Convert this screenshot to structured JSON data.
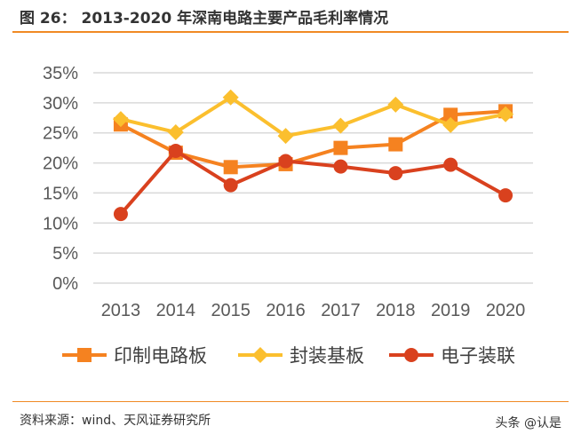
{
  "title": "图 26：  2013-2020 年深南电路主要产品毛利率情况",
  "source": "资料来源：wind、天风证券研究所",
  "credit": "头条 @认是",
  "chart_data": {
    "type": "line",
    "categories": [
      "2013",
      "2014",
      "2015",
      "2016",
      "2017",
      "2018",
      "2019",
      "2020"
    ],
    "ylim": [
      0,
      35
    ],
    "yticks": [
      "0%",
      "5%",
      "10%",
      "15%",
      "20%",
      "25%",
      "30%",
      "35%"
    ],
    "grid": true,
    "legend": "bottom",
    "series": [
      {
        "name": "印制电路板",
        "color": "#f58220",
        "marker": "square",
        "values": [
          26.4,
          21.7,
          19.3,
          19.8,
          22.5,
          23.1,
          28.0,
          28.6
        ]
      },
      {
        "name": "封装基板",
        "color": "#fbbf2e",
        "marker": "diamond",
        "values": [
          27.3,
          25.1,
          30.9,
          24.5,
          26.2,
          29.7,
          26.3,
          28.1
        ]
      },
      {
        "name": "电子装联",
        "color": "#d9411e",
        "marker": "circle",
        "values": [
          11.5,
          22.0,
          16.3,
          20.3,
          19.4,
          18.3,
          19.7,
          14.6
        ]
      }
    ]
  }
}
